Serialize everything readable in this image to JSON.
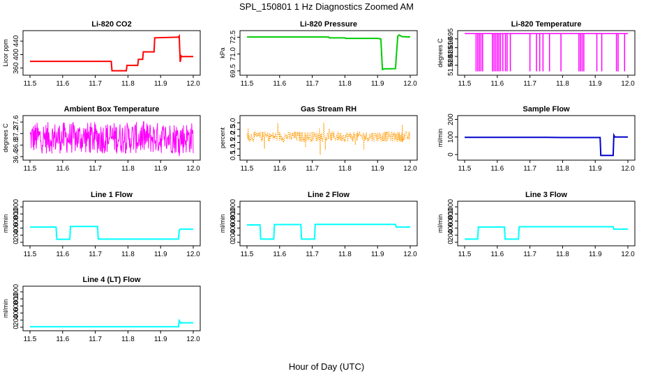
{
  "figure": {
    "title": "SPL_150801  1 Hz Diagnostics Zoomed AM",
    "xlabel": "Hour of Day (UTC)"
  },
  "chart_data": [
    {
      "type": "line",
      "title": "Li-820 CO2",
      "xlabel": "",
      "ylabel": "Licor ppm",
      "xlim": [
        11.5,
        12.0
      ],
      "ylim": [
        345,
        465
      ],
      "x_ticks": [
        "11.5",
        "11.6",
        "11.7",
        "11.8",
        "11.9",
        "12.0"
      ],
      "y_ticks": [
        {
          "v": 360,
          "label": "360"
        },
        {
          "v": 400,
          "label": "400"
        },
        {
          "v": 440,
          "label": "440"
        }
      ],
      "series": [
        {
          "color": "#ff0000",
          "x": [
            11.5,
            11.749,
            11.751,
            11.795,
            11.797,
            11.83,
            11.832,
            11.845,
            11.847,
            11.88,
            11.882,
            11.955,
            11.957,
            11.96,
            11.963,
            11.965,
            12.0
          ],
          "y": [
            380,
            380,
            352,
            352,
            368,
            368,
            386,
            386,
            408,
            408,
            450,
            452,
            455,
            378,
            396,
            394,
            394
          ]
        }
      ]
    },
    {
      "type": "line",
      "title": "Li-820 Pressure",
      "xlabel": "",
      "ylabel": "kPa",
      "xlim": [
        11.5,
        12.0
      ],
      "ylim": [
        69.3,
        72.9
      ],
      "x_ticks": [
        "11.5",
        "11.6",
        "11.7",
        "11.8",
        "11.9",
        "12.0"
      ],
      "y_ticks": [
        {
          "v": 69.5,
          "label": "69.5"
        },
        {
          "v": 71.0,
          "label": "71.0"
        },
        {
          "v": 72.5,
          "label": "72.5"
        }
      ],
      "series": [
        {
          "color": "#00cc00",
          "x": [
            11.5,
            11.75,
            11.752,
            11.8,
            11.802,
            11.9,
            11.91,
            11.915,
            11.92,
            11.955,
            11.958,
            11.962,
            11.966,
            11.975,
            12.0
          ],
          "y": [
            72.52,
            72.52,
            72.44,
            72.44,
            72.4,
            72.4,
            72.35,
            69.62,
            69.68,
            69.7,
            71.0,
            72.6,
            72.7,
            72.55,
            72.52
          ]
        }
      ]
    },
    {
      "type": "line",
      "title": "Li-820 Temperature",
      "xlabel": "",
      "ylabel": "degrees C",
      "xlim": [
        11.5,
        12.0
      ],
      "ylim": [
        51.6755,
        51.6985
      ],
      "x_ticks": [
        "11.5",
        "11.6",
        "11.7",
        "11.8",
        "11.9",
        "12.0"
      ],
      "y_ticks": [
        {
          "v": 51.68,
          "label": "51.680"
        },
        {
          "v": 51.685,
          "label": "51.685"
        },
        {
          "v": 51.69,
          "label": "51.690"
        },
        {
          "v": 51.695,
          "label": "51.695"
        }
      ],
      "baseline": 51.698,
      "dip": 51.6765,
      "dips_x": [
        11.535,
        11.54,
        11.545,
        11.55,
        11.555,
        11.585,
        11.59,
        11.595,
        11.6,
        11.605,
        11.61,
        11.617,
        11.625,
        11.63,
        11.64,
        11.7,
        11.72,
        11.73,
        11.74,
        11.76,
        11.795,
        11.85,
        11.855,
        11.86,
        11.865,
        11.905,
        11.92,
        11.965,
        11.97,
        11.99
      ],
      "series": [
        {
          "color": "#ff00ff"
        }
      ]
    },
    {
      "type": "line",
      "title": "Ambient Box Temperature",
      "xlabel": "",
      "ylabel": "degrees C",
      "xlim": [
        11.5,
        12.0
      ],
      "ylim": [
        36.35,
        37.75
      ],
      "x_ticks": [
        "11.5",
        "11.6",
        "11.7",
        "11.8",
        "11.9",
        "12.0"
      ],
      "y_ticks": [
        {
          "v": 36.4,
          "label": "36.4"
        },
        {
          "v": 36.8,
          "label": "36.8"
        },
        {
          "v": 37.2,
          "label": "37.2"
        },
        {
          "v": 37.6,
          "label": "37.6"
        }
      ],
      "noise": {
        "center": 37.05,
        "low": 36.5,
        "high": 37.6,
        "min": 36.4,
        "max": 37.68
      },
      "series": [
        {
          "color": "#ff00ff"
        }
      ]
    },
    {
      "type": "scatter",
      "title": "Gas Stream RH",
      "xlabel": "",
      "ylabel": "percent",
      "xlim": [
        11.5,
        12.0
      ],
      "ylim": [
        0.3,
        3.4
      ],
      "x_ticks": [
        "11.5",
        "11.6",
        "11.7",
        "11.8",
        "11.9",
        "12.0"
      ],
      "y_ticks": [
        {
          "v": 0.5,
          "label": "0.5"
        },
        {
          "v": 1.0,
          "label": "1.0"
        },
        {
          "v": 1.5,
          "label": "1.5"
        },
        {
          "v": 2.0,
          "label": "2.0"
        },
        {
          "v": 2.5,
          "label": "2.5"
        },
        {
          "v": 3.0,
          "label": "3.0"
        }
      ],
      "noise": {
        "center": 1.95,
        "low": 1.55,
        "high": 2.35,
        "min": 0.45,
        "max": 3.2
      },
      "series": [
        {
          "color": "#ff9900"
        }
      ]
    },
    {
      "type": "line",
      "title": "Sample Flow",
      "xlabel": "",
      "ylabel": "ml/min",
      "xlim": [
        11.5,
        12.0
      ],
      "ylim": [
        -20,
        210
      ],
      "x_ticks": [
        "11.5",
        "11.6",
        "11.7",
        "11.8",
        "11.9",
        "12.0"
      ],
      "y_ticks": [
        {
          "v": 0,
          "label": "0"
        },
        {
          "v": 100,
          "label": "100"
        },
        {
          "v": 200,
          "label": "200"
        }
      ],
      "series": [
        {
          "color": "#0000cc",
          "x": [
            11.5,
            11.75,
            11.8,
            11.915,
            11.917,
            11.955,
            11.957,
            11.96,
            12.0
          ],
          "y": [
            98,
            98,
            97,
            97,
            -5,
            -5,
            110,
            100,
            100
          ]
        }
      ]
    },
    {
      "type": "line",
      "title": "Line 1 Flow",
      "xlabel": "",
      "ylabel": "ml/min",
      "xlim": [
        11.5,
        12.0
      ],
      "ylim": [
        -40,
        1100
      ],
      "x_ticks": [
        "11.5",
        "11.6",
        "11.7",
        "11.8",
        "11.9",
        "12.0"
      ],
      "y_ticks": [
        {
          "v": 0,
          "label": "0"
        },
        {
          "v": 200,
          "label": "200"
        },
        {
          "v": 400,
          "label": "400"
        },
        {
          "v": 600,
          "label": "600"
        },
        {
          "v": 800,
          "label": "800"
        },
        {
          "v": 1000,
          "label": "1000"
        }
      ],
      "series": [
        {
          "color": "#00ffff",
          "x": [
            11.5,
            11.58,
            11.582,
            11.622,
            11.624,
            11.707,
            11.709,
            11.955,
            11.957,
            11.96,
            12.0
          ],
          "y": [
            430,
            430,
            85,
            85,
            445,
            445,
            90,
            90,
            330,
            370,
            370
          ]
        }
      ]
    },
    {
      "type": "line",
      "title": "Line 2 Flow",
      "xlabel": "",
      "ylabel": "ml/min",
      "xlim": [
        11.5,
        12.0
      ],
      "ylim": [
        -40,
        1100
      ],
      "x_ticks": [
        "11.5",
        "11.6",
        "11.7",
        "11.8",
        "11.9",
        "12.0"
      ],
      "y_ticks": [
        {
          "v": 0,
          "label": "0"
        },
        {
          "v": 200,
          "label": "200"
        },
        {
          "v": 400,
          "label": "400"
        },
        {
          "v": 600,
          "label": "600"
        },
        {
          "v": 800,
          "label": "800"
        },
        {
          "v": 1000,
          "label": "1000"
        }
      ],
      "series": [
        {
          "color": "#00ffff",
          "x": [
            11.5,
            11.54,
            11.542,
            11.582,
            11.584,
            11.665,
            11.667,
            11.707,
            11.709,
            11.955,
            11.957,
            12.0
          ],
          "y": [
            490,
            490,
            90,
            90,
            500,
            500,
            90,
            90,
            505,
            505,
            430,
            430
          ]
        }
      ]
    },
    {
      "type": "line",
      "title": "Line 3 Flow",
      "xlabel": "",
      "ylabel": "ml/min",
      "xlim": [
        11.5,
        12.0
      ],
      "ylim": [
        -40,
        1100
      ],
      "x_ticks": [
        "11.5",
        "11.6",
        "11.7",
        "11.8",
        "11.9",
        "12.0"
      ],
      "y_ticks": [
        {
          "v": 0,
          "label": "0"
        },
        {
          "v": 200,
          "label": "200"
        },
        {
          "v": 400,
          "label": "400"
        },
        {
          "v": 600,
          "label": "600"
        },
        {
          "v": 800,
          "label": "800"
        },
        {
          "v": 1000,
          "label": "1000"
        }
      ],
      "series": [
        {
          "color": "#00ffff",
          "x": [
            11.5,
            11.54,
            11.542,
            11.622,
            11.624,
            11.665,
            11.667,
            11.955,
            11.957,
            12.0
          ],
          "y": [
            90,
            90,
            430,
            430,
            90,
            90,
            440,
            440,
            370,
            370
          ]
        }
      ]
    },
    {
      "type": "line",
      "title": "Line 4 (LT) Flow",
      "xlabel": "",
      "ylabel": "ml/min",
      "xlim": [
        11.5,
        12.0
      ],
      "ylim": [
        -40,
        1100
      ],
      "x_ticks": [
        "11.5",
        "11.6",
        "11.7",
        "11.8",
        "11.9",
        "12.0"
      ],
      "y_ticks": [
        {
          "v": 0,
          "label": "0"
        },
        {
          "v": 200,
          "label": "200"
        },
        {
          "v": 400,
          "label": "400"
        },
        {
          "v": 600,
          "label": "600"
        },
        {
          "v": 800,
          "label": "800"
        },
        {
          "v": 1000,
          "label": "1000"
        }
      ],
      "series": [
        {
          "color": "#00ffff",
          "x": [
            11.5,
            11.955,
            11.957,
            11.962,
            11.97,
            12.0
          ],
          "y": [
            15,
            15,
            190,
            120,
            125,
            125
          ]
        }
      ]
    }
  ]
}
